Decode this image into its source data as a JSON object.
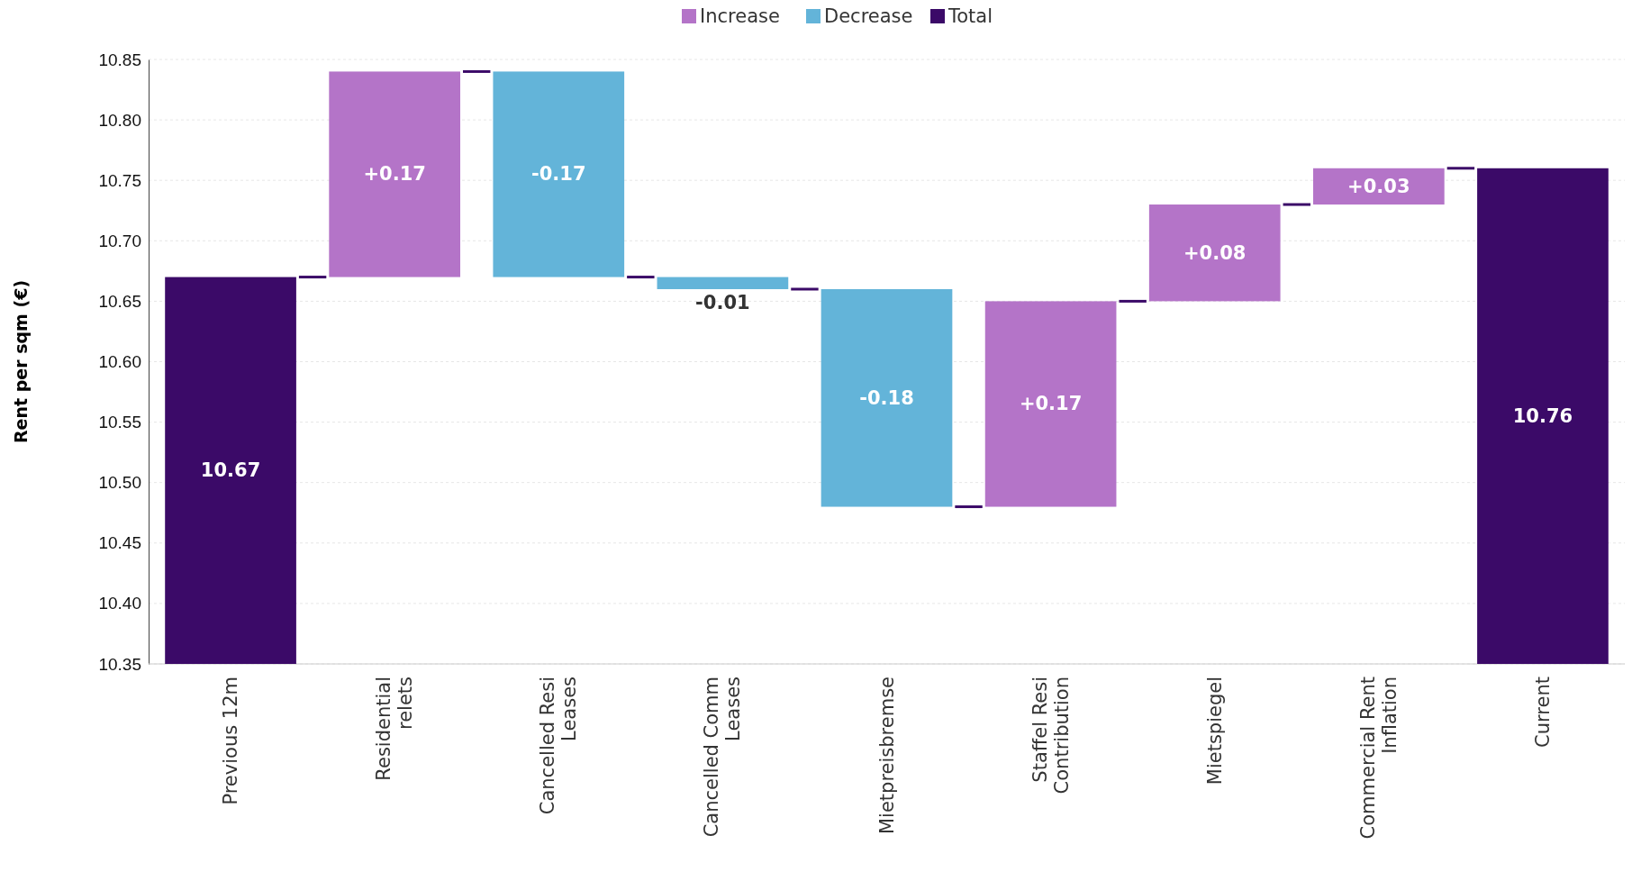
{
  "chart_data": {
    "type": "bar",
    "ylabel": "Rent per sqm (€)",
    "categories": [
      "Previous 12m",
      "Residential relets",
      "Cancelled Resi Leases",
      "Cancelled Comm Leases",
      "Mietpreisbremse",
      "Staffel Resi Contribution",
      "Mietspiegel",
      "Commercial Rent Inflation",
      "Current"
    ],
    "series": [
      {
        "name": "Increase",
        "color": "#b474c8",
        "values": [
          null,
          0.17,
          null,
          null,
          null,
          0.17,
          0.08,
          0.03,
          null
        ],
        "base": [
          null,
          10.67,
          null,
          null,
          null,
          10.48,
          10.65,
          10.73,
          null
        ],
        "value_labels": [
          null,
          "+0.17",
          null,
          null,
          null,
          "+0.17",
          "+0.08",
          "+0.03",
          null
        ]
      },
      {
        "name": "Decrease",
        "color": "#63b4d9",
        "values": [
          null,
          null,
          -0.17,
          -0.01,
          -0.18,
          null,
          null,
          null,
          null
        ],
        "base": [
          null,
          null,
          10.84,
          10.67,
          10.66,
          null,
          null,
          null,
          null
        ],
        "value_labels": [
          null,
          null,
          "-0.17",
          "-0.01",
          "-0.18",
          null,
          null,
          null,
          null
        ]
      },
      {
        "name": "Total",
        "color": "#3b0a68",
        "values": [
          10.67,
          null,
          null,
          null,
          null,
          null,
          null,
          null,
          10.76
        ],
        "value_labels": [
          "10.67",
          null,
          null,
          null,
          null,
          null,
          null,
          null,
          "10.76"
        ]
      }
    ],
    "ylim": [
      10.35,
      10.85
    ],
    "yticks": [
      {
        "value": 10.35,
        "label": "10.35"
      },
      {
        "value": 10.4,
        "label": "10.40"
      },
      {
        "value": 10.45,
        "label": "10.45"
      },
      {
        "value": 10.5,
        "label": "10.50"
      },
      {
        "value": 10.55,
        "label": "10.55"
      },
      {
        "value": 10.6,
        "label": "10.60"
      },
      {
        "value": 10.65,
        "label": "10.65"
      },
      {
        "value": 10.7,
        "label": "10.70"
      },
      {
        "value": 10.75,
        "label": "10.75"
      },
      {
        "value": 10.8,
        "label": "10.80"
      },
      {
        "value": 10.85,
        "label": "10.85"
      }
    ],
    "grid": "y",
    "legend": "top"
  }
}
